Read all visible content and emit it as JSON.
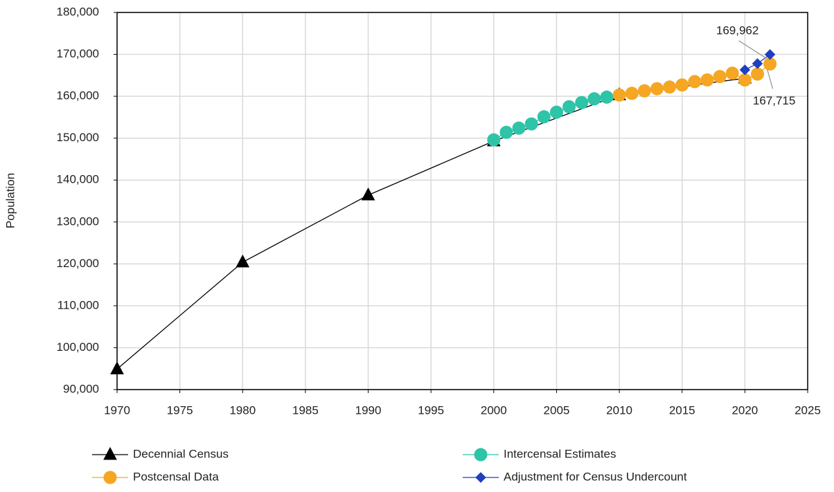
{
  "chart_data": {
    "type": "line",
    "y_label": "Population",
    "xlim": [
      1970,
      2025
    ],
    "xticks": [
      1970,
      1975,
      1980,
      1985,
      1990,
      1995,
      2000,
      2005,
      2010,
      2015,
      2020,
      2025
    ],
    "ylim": [
      90000,
      180000
    ],
    "yticks": [
      {
        "value": 90000,
        "label": "90,000"
      },
      {
        "value": 100000,
        "label": "100,000"
      },
      {
        "value": 110000,
        "label": "110,000"
      },
      {
        "value": 120000,
        "label": "120,000"
      },
      {
        "value": 130000,
        "label": "130,000"
      },
      {
        "value": 140000,
        "label": "140,000"
      },
      {
        "value": 150000,
        "label": "150,000"
      },
      {
        "value": 160000,
        "label": "160,000"
      },
      {
        "value": 170000,
        "label": "170,000"
      },
      {
        "value": 180000,
        "label": "180,000"
      }
    ],
    "grid": true,
    "legend": "bottom",
    "series": [
      {
        "name": "Decennial Census",
        "color": "#000000",
        "marker": "triangle",
        "x": [
          1970,
          1980,
          1990,
          2000,
          2010,
          2020
        ],
        "values": [
          94900,
          120400,
          136400,
          149300,
          160300,
          164300
        ]
      },
      {
        "name": "Intercensal Estimates",
        "color": "#2ec4a8",
        "marker": "circle",
        "x": [
          2000,
          2001,
          2002,
          2003,
          2004,
          2005,
          2006,
          2007,
          2008,
          2009
        ],
        "values": [
          149600,
          151400,
          152400,
          153400,
          155100,
          156200,
          157500,
          158500,
          159400,
          159800
        ]
      },
      {
        "name": "Postcensal Data",
        "color": "#f5a623",
        "marker": "circle",
        "x": [
          2010,
          2011,
          2012,
          2013,
          2014,
          2015,
          2016,
          2017,
          2018,
          2019,
          2020,
          2021,
          2022
        ],
        "values": [
          160300,
          160700,
          161300,
          161800,
          162200,
          162700,
          163500,
          163900,
          164700,
          165500,
          163900,
          165300,
          167715
        ],
        "value_labels": [
          null,
          null,
          null,
          null,
          null,
          null,
          null,
          null,
          null,
          null,
          null,
          null,
          "167,715"
        ]
      },
      {
        "name": "Adjustment for Census Undercount",
        "color": "#1f3fbf",
        "marker": "diamond",
        "x": [
          2020,
          2021,
          2022
        ],
        "values": [
          166300,
          167800,
          169962
        ],
        "value_labels": [
          null,
          null,
          "169,962"
        ]
      }
    ]
  }
}
